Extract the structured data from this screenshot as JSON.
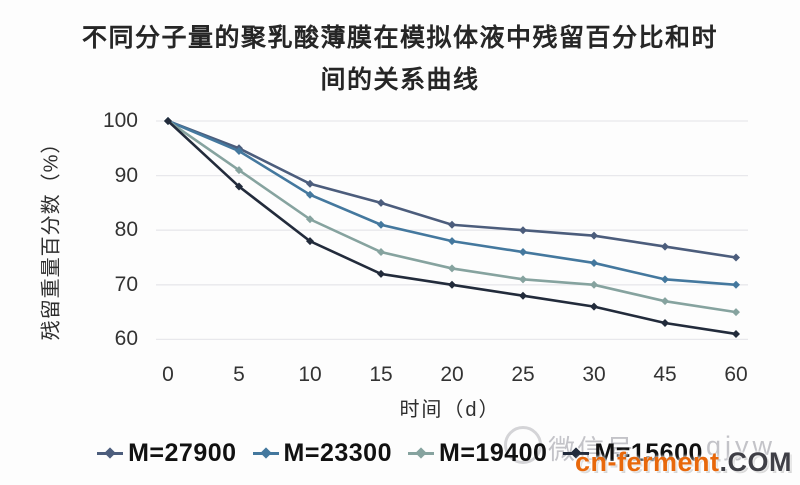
{
  "title": {
    "line1": "不同分子量的聚乳酸薄膜在模拟体液中残留百分比和时",
    "line2": "间的关系曲线"
  },
  "chart_data": {
    "type": "line",
    "categories": [
      0,
      5,
      10,
      15,
      20,
      25,
      30,
      45,
      60
    ],
    "x_tick_labels": [
      "0",
      "5",
      "10",
      "15",
      "20",
      "25",
      "30",
      "45",
      "60"
    ],
    "xlabel": "时间（d）",
    "ylabel": "残留重量百分数（%）",
    "ylim": [
      60,
      100
    ],
    "yticks": [
      100,
      90,
      80,
      70,
      60
    ],
    "grid": "horizontal-only",
    "gridline_color": "#e8e8ec",
    "legend_position": "bottom",
    "series": [
      {
        "name": "M=27900",
        "color": "#4C5D7C",
        "values": [
          100,
          95,
          88.5,
          85,
          81,
          80,
          79,
          77,
          75
        ]
      },
      {
        "name": "M=23300",
        "color": "#44789E",
        "values": [
          100,
          94.5,
          86.5,
          81,
          78,
          76,
          74,
          71,
          70
        ]
      },
      {
        "name": "M=19400",
        "color": "#86A39F",
        "values": [
          100,
          91,
          82,
          76,
          73,
          71,
          70,
          67,
          65
        ]
      },
      {
        "name": "M=15600",
        "color": "#222B3B",
        "values": [
          100,
          88,
          78,
          72,
          70,
          68,
          66,
          63,
          61
        ]
      }
    ]
  },
  "watermark": {
    "wechat_prefix": "微信号",
    "wechat_suffix": "qjyw",
    "site_name": "cn-ferment",
    "site_tld": ".COM",
    "site_name_color": "#E8680B",
    "site_tld_color": "#3F3F46",
    "gray_color": "#c3c3c8"
  }
}
